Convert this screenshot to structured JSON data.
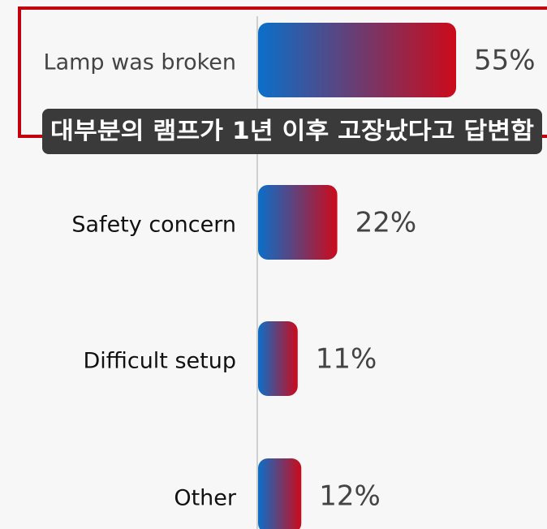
{
  "chart_data": {
    "type": "bar",
    "orientation": "horizontal",
    "categories": [
      "Lamp was broken",
      "Safety concern",
      "Difficult setup",
      "Other"
    ],
    "values": [
      55,
      22,
      11,
      12
    ],
    "value_labels": [
      "55%",
      "22%",
      "11%",
      "12%"
    ],
    "color": [
      "#0a6fc9",
      "#cc0a1a"
    ],
    "annotation": "대부분의 램프가 1년 이후 고장났다고 답변함"
  }
}
